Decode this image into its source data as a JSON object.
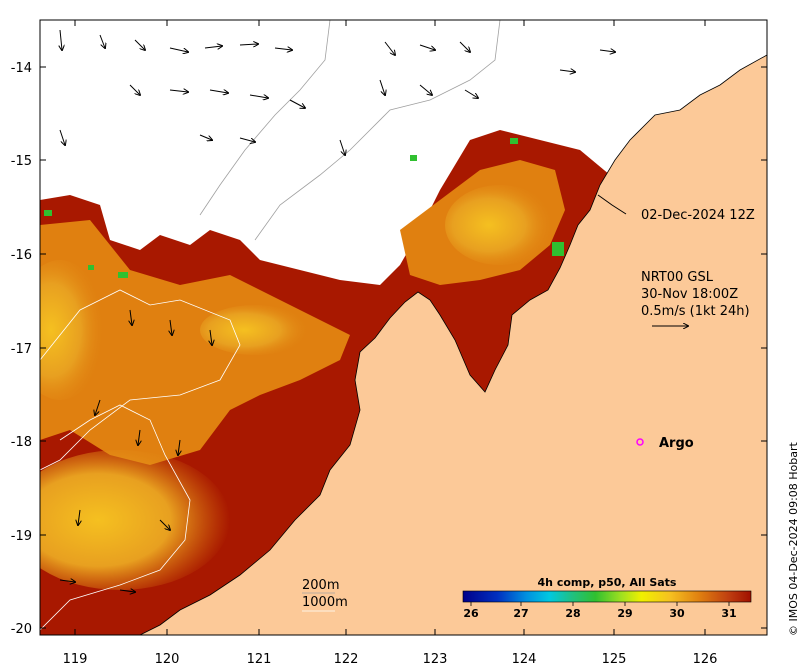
{
  "map": {
    "lon_ticks": [
      "119",
      "120",
      "121",
      "122",
      "123",
      "124",
      "125",
      "126"
    ],
    "lat_ticks": [
      "-14",
      "-15",
      "-16",
      "-17",
      "-18",
      "-19",
      "-20"
    ],
    "lon_range": [
      118.6,
      126.75
    ],
    "lat_range": [
      -20.05,
      -13.55
    ]
  },
  "annotations": {
    "track_label": "02-Dec-2024 12Z",
    "current_source": "NRT00 GSL",
    "current_time": "30-Nov 18:00Z",
    "current_scale": "0.5m/s (1kt 24h)",
    "argo_label": "Argo"
  },
  "bathymetry_legend": {
    "contour_1": "200m",
    "contour_2": "1000m"
  },
  "colorbar": {
    "title": "4h comp, p50, All Sats",
    "ticks": [
      "26",
      "27",
      "28",
      "29",
      "30",
      "31"
    ],
    "range": [
      25.7,
      31.5
    ]
  },
  "credit": "© IMOS 04-Dec-2024 09:08 Hobart",
  "colors": {
    "land": "#fcc998",
    "sst_hot": "#a81800",
    "sst_warm": "#e08010",
    "sst_yellow": "#f5c020",
    "sst_green": "#30c030",
    "argo_marker": "#ff00ff"
  }
}
